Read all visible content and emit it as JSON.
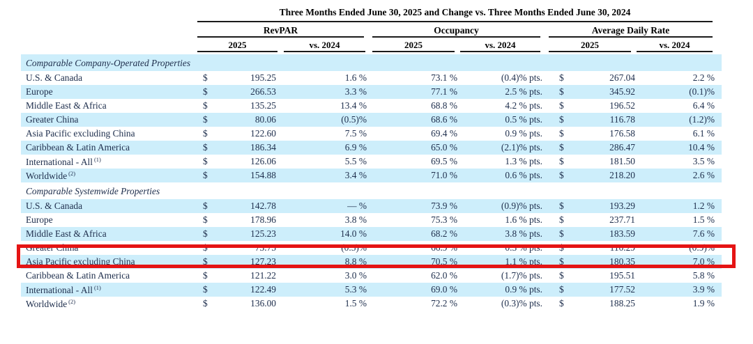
{
  "header": {
    "title": "Three Months Ended June 30, 2025 and Change vs. Three Months Ended June 30, 2024",
    "groups": [
      {
        "label": "RevPAR",
        "sub": [
          "2025",
          "vs. 2024"
        ]
      },
      {
        "label": "Occupancy",
        "sub": [
          "2025",
          "vs. 2024"
        ]
      },
      {
        "label": "Average Daily Rate",
        "sub": [
          "2025",
          "vs. 2024"
        ]
      }
    ]
  },
  "colors": {
    "row_shade": "#cdeefb",
    "body_text": "#20304e",
    "header_text": "#000000",
    "highlight_border": "#e51414"
  },
  "annotation": {
    "type": "red-highlight-box",
    "highlighted_row": "Greater China",
    "highlighted_section": "Comparable Systemwide Properties"
  },
  "table": {
    "currency": "$",
    "sections": [
      {
        "title": "Comparable Company-Operated Properties",
        "title_shaded": true,
        "rows": [
          {
            "label": "U.S. & Canada",
            "sup": "",
            "shaded": false,
            "revpar_2025": "195.25",
            "revpar_vs": "1.6 %",
            "occ_2025": "73.1 %",
            "occ_vs": "(0.4)% pts.",
            "adr_2025": "267.04",
            "adr_vs": "2.2 %",
            "highlight": false
          },
          {
            "label": "Europe",
            "sup": "",
            "shaded": true,
            "revpar_2025": "266.53",
            "revpar_vs": "3.3 %",
            "occ_2025": "77.1 %",
            "occ_vs": "2.5 % pts.",
            "adr_2025": "345.92",
            "adr_vs": "(0.1)%",
            "highlight": false
          },
          {
            "label": "Middle East & Africa",
            "sup": "",
            "shaded": false,
            "revpar_2025": "135.25",
            "revpar_vs": "13.4 %",
            "occ_2025": "68.8 %",
            "occ_vs": "4.2 % pts.",
            "adr_2025": "196.52",
            "adr_vs": "6.4 %",
            "highlight": false
          },
          {
            "label": "Greater China",
            "sup": "",
            "shaded": true,
            "revpar_2025": "80.06",
            "revpar_vs": "(0.5)%",
            "occ_2025": "68.6 %",
            "occ_vs": "0.5 % pts.",
            "adr_2025": "116.78",
            "adr_vs": "(1.2)%",
            "highlight": false
          },
          {
            "label": "Asia Pacific excluding China",
            "sup": "",
            "shaded": false,
            "revpar_2025": "122.60",
            "revpar_vs": "7.5 %",
            "occ_2025": "69.4 %",
            "occ_vs": "0.9 % pts.",
            "adr_2025": "176.58",
            "adr_vs": "6.1 %",
            "highlight": false
          },
          {
            "label": "Caribbean & Latin America",
            "sup": "",
            "shaded": true,
            "revpar_2025": "186.34",
            "revpar_vs": "6.9 %",
            "occ_2025": "65.0 %",
            "occ_vs": "(2.1)% pts.",
            "adr_2025": "286.47",
            "adr_vs": "10.4 %",
            "highlight": false
          },
          {
            "label": "International - All",
            "sup": "(1)",
            "shaded": false,
            "revpar_2025": "126.06",
            "revpar_vs": "5.5 %",
            "occ_2025": "69.5 %",
            "occ_vs": "1.3 % pts.",
            "adr_2025": "181.50",
            "adr_vs": "3.5 %",
            "highlight": false
          },
          {
            "label": "Worldwide",
            "sup": "(2)",
            "shaded": true,
            "revpar_2025": "154.88",
            "revpar_vs": "3.4 %",
            "occ_2025": "71.0 %",
            "occ_vs": "0.6 % pts.",
            "adr_2025": "218.20",
            "adr_vs": "2.6 %",
            "highlight": false
          }
        ]
      },
      {
        "title": "Comparable Systemwide Properties",
        "title_shaded": false,
        "rows": [
          {
            "label": "U.S. & Canada",
            "sup": "",
            "shaded": true,
            "revpar_2025": "142.78",
            "revpar_vs": "— %",
            "occ_2025": "73.9 %",
            "occ_vs": "(0.9)% pts.",
            "adr_2025": "193.29",
            "adr_vs": "1.2 %",
            "highlight": false
          },
          {
            "label": "Europe",
            "sup": "",
            "shaded": false,
            "revpar_2025": "178.96",
            "revpar_vs": "3.8 %",
            "occ_2025": "75.3 %",
            "occ_vs": "1.6 % pts.",
            "adr_2025": "237.71",
            "adr_vs": "1.5 %",
            "highlight": false
          },
          {
            "label": "Middle East & Africa",
            "sup": "",
            "shaded": true,
            "revpar_2025": "125.23",
            "revpar_vs": "14.0 %",
            "occ_2025": "68.2 %",
            "occ_vs": "3.8 % pts.",
            "adr_2025": "183.59",
            "adr_vs": "7.6 %",
            "highlight": false
          },
          {
            "label": "Greater China",
            "sup": "",
            "shaded": false,
            "revpar_2025": "73.75",
            "revpar_vs": "(0.5)%",
            "occ_2025": "66.9 %",
            "occ_vs": "0.3 % pts.",
            "adr_2025": "110.29",
            "adr_vs": "(0.9)%",
            "highlight": true
          },
          {
            "label": "Asia Pacific excluding China",
            "sup": "",
            "shaded": true,
            "revpar_2025": "127.23",
            "revpar_vs": "8.8 %",
            "occ_2025": "70.5 %",
            "occ_vs": "1.1 % pts.",
            "adr_2025": "180.35",
            "adr_vs": "7.0 %",
            "highlight": false
          },
          {
            "label": "Caribbean & Latin America",
            "sup": "",
            "shaded": false,
            "revpar_2025": "121.22",
            "revpar_vs": "3.0 %",
            "occ_2025": "62.0 %",
            "occ_vs": "(1.7)% pts.",
            "adr_2025": "195.51",
            "adr_vs": "5.8 %",
            "highlight": false
          },
          {
            "label": "International - All",
            "sup": "(1)",
            "shaded": true,
            "revpar_2025": "122.49",
            "revpar_vs": "5.3 %",
            "occ_2025": "69.0 %",
            "occ_vs": "0.9 % pts.",
            "adr_2025": "177.52",
            "adr_vs": "3.9 %",
            "highlight": false
          },
          {
            "label": "Worldwide",
            "sup": "(2)",
            "shaded": false,
            "revpar_2025": "136.00",
            "revpar_vs": "1.5 %",
            "occ_2025": "72.2 %",
            "occ_vs": "(0.3)% pts.",
            "adr_2025": "188.25",
            "adr_vs": "1.9 %",
            "highlight": false
          }
        ]
      }
    ]
  }
}
